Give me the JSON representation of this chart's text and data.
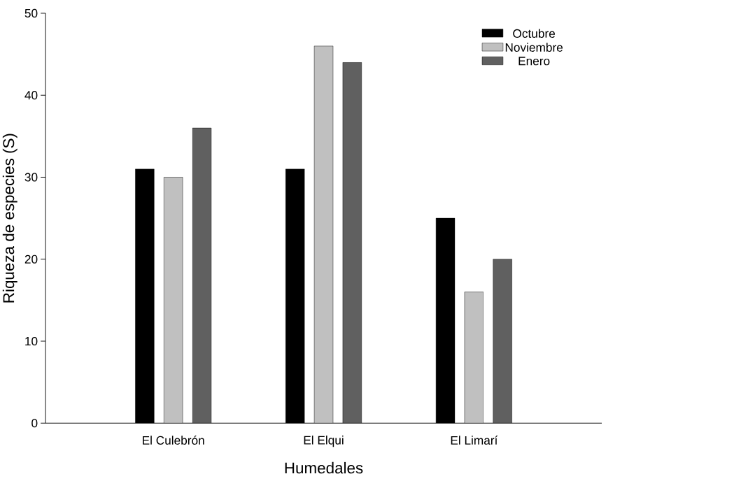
{
  "chart_data": {
    "type": "bar",
    "xlabel": "Humedales",
    "ylabel": "Riqueza de especies  (S)",
    "categories": [
      "El Culebrón",
      "El Elqui",
      "El Limarí"
    ],
    "series": [
      {
        "name": "Octubre",
        "color": "#000000",
        "values": [
          31,
          31,
          25
        ]
      },
      {
        "name": "Noviembre",
        "color": "#c0c0c0",
        "values": [
          30,
          46,
          16
        ]
      },
      {
        "name": "Enero",
        "color": "#606060",
        "values": [
          36,
          44,
          20
        ]
      }
    ],
    "ylim": [
      0,
      50
    ],
    "yticks": [
      0,
      10,
      20,
      30,
      40,
      50
    ],
    "grid": false,
    "legend": "top right"
  }
}
